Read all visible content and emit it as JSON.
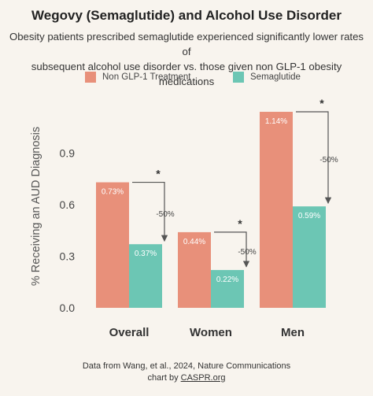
{
  "title": "Wegovy (Semaglutide) and Alcohol Use Disorder",
  "subtitle_lines": [
    "Obesity patients prescribed semaglutide experienced significantly lower rates of",
    "subsequent alcohol use disorder vs. those given non GLP-1 obesity medications"
  ],
  "legend": [
    {
      "label": "Non GLP-1 Treatment",
      "color": "#e8907a"
    },
    {
      "label": "Semaglutide",
      "color": "#6cc6b4"
    }
  ],
  "footer": {
    "source": "Data from Wang, et al., 2024, Nature Communications",
    "credit_prefix": "chart by ",
    "credit_link": "CASPR.org"
  },
  "chart_data": {
    "type": "bar",
    "ylabel": "% Receiving an AUD Diagnosis",
    "ylim": [
      0,
      1.2
    ],
    "yticks": [
      0.0,
      0.3,
      0.6,
      0.9
    ],
    "ytick_labels": [
      "0.0",
      "0.3",
      "0.6",
      "0.9"
    ],
    "categories": [
      "Overall",
      "Women",
      "Men"
    ],
    "series": [
      {
        "name": "Non GLP-1 Treatment",
        "color": "#e8907a",
        "values": [
          0.73,
          0.44,
          1.14
        ],
        "labels": [
          "0.73%",
          "0.44%",
          "1.14%"
        ]
      },
      {
        "name": "Semaglutide",
        "color": "#6cc6b4",
        "values": [
          0.37,
          0.22,
          0.59
        ],
        "labels": [
          "0.37%",
          "0.22%",
          "0.59%"
        ]
      }
    ],
    "annotations": [
      {
        "category": "Overall",
        "text": "-50%",
        "marker": "*"
      },
      {
        "category": "Women",
        "text": "-50%",
        "marker": "*"
      },
      {
        "category": "Men",
        "text": "-50%",
        "marker": "*"
      }
    ],
    "grid": false,
    "legend_position": "top"
  }
}
